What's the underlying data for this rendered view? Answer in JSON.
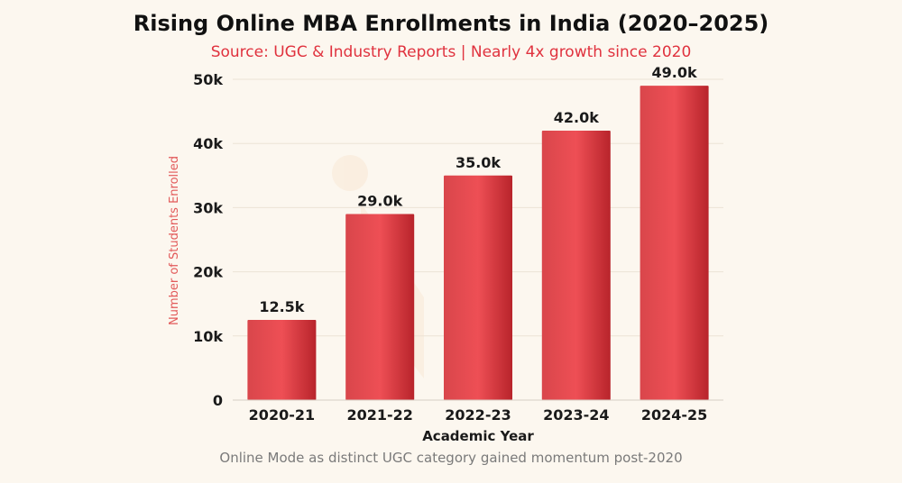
{
  "chart_data": {
    "type": "bar",
    "title": "Rising Online MBA Enrollments in India (2020–2025)",
    "subtitle": "Source: UGC & Industry Reports | Nearly 4x growth since 2020",
    "xlabel": "Academic Year",
    "ylabel": "Number of Students Enrolled",
    "footnote": "Online Mode as distinct UGC category gained momentum post-2020",
    "categories": [
      "2020-21",
      "2021-22",
      "2022-23",
      "2023-24",
      "2024-25"
    ],
    "values": [
      12500,
      29000,
      35000,
      42000,
      49000
    ],
    "data_labels": [
      "12.5k",
      "29.0k",
      "35.0k",
      "42.0k",
      "49.0k"
    ],
    "ylim": [
      0,
      50000
    ],
    "yticks": [
      0,
      10000,
      20000,
      30000,
      40000,
      50000
    ],
    "ytick_labels": [
      "0",
      "10k",
      "20k",
      "30k",
      "40k",
      "50k"
    ],
    "grid": true,
    "legend": "none",
    "colors": {
      "bar": "#e5484d",
      "bar_dark": "#b8242b",
      "subtitle": "#e0323e",
      "ylabel": "#e25a5a",
      "background": "#fcf7ef",
      "grid": "#ece3d6"
    }
  }
}
